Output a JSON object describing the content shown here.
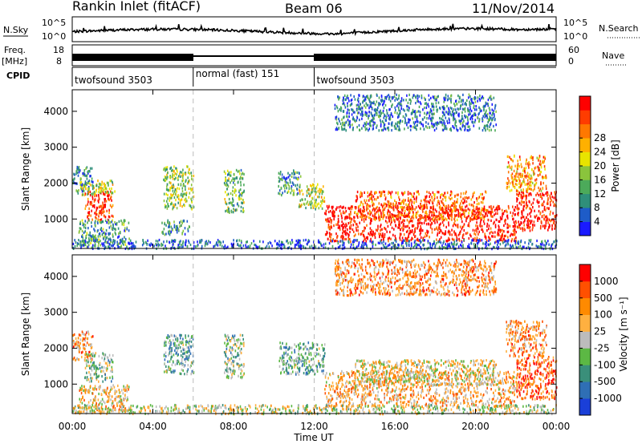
{
  "header": {
    "station": "Rankin Inlet (fitACF)",
    "beam": "Beam 06",
    "date": "11/Nov/2014"
  },
  "noise_panel": {
    "left_label": "N.Sky",
    "left_ticks": [
      "10^5",
      "10^0"
    ],
    "right_ticks": [
      "10^5",
      "10^0"
    ],
    "right_label": "N.Search"
  },
  "freq_panel": {
    "left_label_top": "Freq.",
    "left_label_bottom": "[MHz]",
    "left_ticks": [
      "18",
      "8"
    ],
    "right_ticks": [
      "60",
      "0"
    ],
    "right_label": "Nave"
  },
  "cpid_panel": {
    "label": "CPID",
    "modes": [
      {
        "name": "twofsound 3503",
        "start_h": 0,
        "end_h": 6
      },
      {
        "name": "normal (fast) 151",
        "start_h": 6,
        "end_h": 12
      },
      {
        "name": "twofsound 3503",
        "start_h": 12,
        "end_h": 24
      }
    ]
  },
  "time_axis": {
    "label": "Time UT",
    "ticks": [
      "00:00",
      "04:00",
      "08:00",
      "12:00",
      "16:00",
      "20:00",
      "00:00"
    ],
    "range_hours": [
      0,
      24
    ]
  },
  "chart_data": [
    {
      "type": "heatmap",
      "name": "power",
      "ylabel": "Slant Range [km]",
      "ylim": [
        180,
        4600
      ],
      "yticks": [
        1000,
        2000,
        3000,
        4000
      ],
      "colorbar": {
        "label": "Power [dB]",
        "ticks": [
          "4",
          "8",
          "12",
          "16",
          "20",
          "24",
          "28"
        ],
        "colors": [
          "#1a1aff",
          "#1e5cc8",
          "#2f8f7a",
          "#4caa5a",
          "#8ac43c",
          "#e8e400",
          "#ffb000",
          "#ff7800",
          "#ff3c00",
          "#ff0000"
        ]
      },
      "regions": [
        {
          "t0": 0.0,
          "t1": 1.0,
          "r0": 1800,
          "r1": 2500,
          "level": 0.2
        },
        {
          "t0": 0.6,
          "t1": 2.0,
          "r0": 1000,
          "r1": 1800,
          "level": 0.9
        },
        {
          "t0": 0.2,
          "t1": 2.1,
          "r0": 1700,
          "r1": 2100,
          "level": 0.5
        },
        {
          "t0": 0.3,
          "t1": 2.8,
          "r0": 250,
          "r1": 1000,
          "level": 0.3
        },
        {
          "t0": 4.5,
          "t1": 6.0,
          "r0": 1300,
          "r1": 2500,
          "level": 0.45
        },
        {
          "t0": 4.4,
          "t1": 5.8,
          "r0": 600,
          "r1": 1000,
          "level": 0.3
        },
        {
          "t0": 7.5,
          "t1": 8.5,
          "r0": 1200,
          "r1": 2400,
          "level": 0.4
        },
        {
          "t0": 10.2,
          "t1": 11.3,
          "r0": 1700,
          "r1": 2400,
          "level": 0.3
        },
        {
          "t0": 11.2,
          "t1": 12.5,
          "r0": 1300,
          "r1": 2000,
          "level": 0.5
        },
        {
          "t0": 12.5,
          "t1": 22.0,
          "r0": 400,
          "r1": 1400,
          "level": 0.95
        },
        {
          "t0": 14.0,
          "t1": 20.5,
          "r0": 1000,
          "r1": 1800,
          "level": 0.8
        },
        {
          "t0": 22.0,
          "t1": 24.0,
          "r0": 700,
          "r1": 1800,
          "level": 0.95
        },
        {
          "t0": 21.5,
          "t1": 23.5,
          "r0": 1800,
          "r1": 2800,
          "level": 0.7
        },
        {
          "t0": 0.0,
          "t1": 24.0,
          "r0": 200,
          "r1": 450,
          "level": 0.15
        },
        {
          "t0": 13.0,
          "t1": 21.0,
          "r0": 3500,
          "r1": 4500,
          "level": 0.2
        }
      ]
    },
    {
      "type": "heatmap",
      "name": "velocity",
      "ylabel": "Slant Range [km]",
      "ylim": [
        180,
        4600
      ],
      "yticks": [
        1000,
        2000,
        3000,
        4000
      ],
      "colorbar": {
        "label": "Velocity [m s⁻¹]",
        "ticks": [
          "1000",
          "500",
          "100",
          "25",
          "-25",
          "-100",
          "-500",
          "-1000"
        ],
        "colors": [
          "#1a3fd8",
          "#2f6fb5",
          "#3a8f7a",
          "#5cb844",
          "#bcbcbc",
          "#ffb040",
          "#ff8a00",
          "#ff5000",
          "#ff0000"
        ]
      },
      "regions": [
        {
          "t0": 0.0,
          "t1": 1.0,
          "r0": 1700,
          "r1": 2500,
          "level": 0.7
        },
        {
          "t0": 0.6,
          "t1": 2.0,
          "r0": 1100,
          "r1": 1900,
          "level": 0.4
        },
        {
          "t0": 0.3,
          "t1": 2.8,
          "r0": 250,
          "r1": 1000,
          "level": 0.6
        },
        {
          "t0": 4.5,
          "t1": 6.0,
          "r0": 1300,
          "r1": 2400,
          "level": 0.35
        },
        {
          "t0": 7.5,
          "t1": 8.5,
          "r0": 1200,
          "r1": 2400,
          "level": 0.4
        },
        {
          "t0": 10.2,
          "t1": 12.5,
          "r0": 1300,
          "r1": 2200,
          "level": 0.35
        },
        {
          "t0": 12.5,
          "t1": 22.0,
          "r0": 400,
          "r1": 1400,
          "level": 0.65
        },
        {
          "t0": 14.0,
          "t1": 21.0,
          "r0": 1000,
          "r1": 1700,
          "level": 0.55
        },
        {
          "t0": 22.0,
          "t1": 24.0,
          "r0": 600,
          "r1": 1800,
          "level": 0.8
        },
        {
          "t0": 21.5,
          "t1": 23.5,
          "r0": 1800,
          "r1": 2800,
          "level": 0.7
        },
        {
          "t0": 0.0,
          "t1": 24.0,
          "r0": 200,
          "r1": 450,
          "level": 0.5
        },
        {
          "t0": 13.0,
          "t1": 21.0,
          "r0": 3500,
          "r1": 4500,
          "level": 0.7
        }
      ]
    }
  ]
}
